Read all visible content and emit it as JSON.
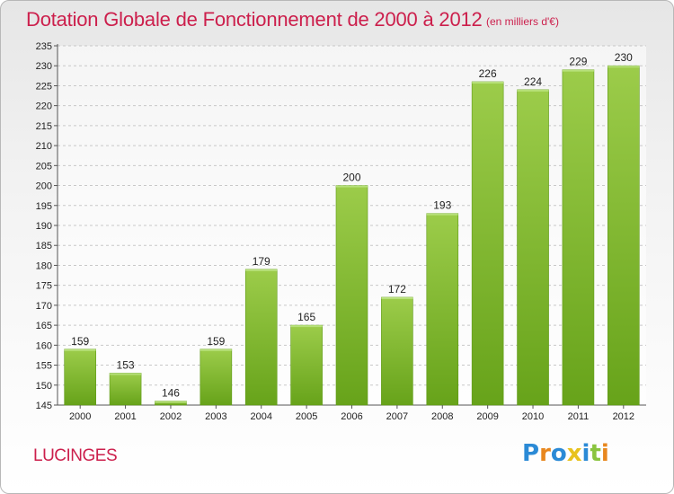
{
  "header": {
    "title": "Dotation Globale de Fonctionnement de 2000 à 2012",
    "subtitle": "(en milliers d'€)"
  },
  "footer": {
    "place": "LUCINGES",
    "brand": {
      "letters": [
        "P",
        "r",
        "o",
        "x",
        "i",
        "t",
        "i"
      ],
      "colors": [
        "#2b8ad6",
        "#e8871e",
        "#2b8ad6",
        "#e8c21e",
        "#2b8ad6",
        "#8ac43f",
        "#e8871e"
      ]
    }
  },
  "chart_data": {
    "type": "bar",
    "title": "Dotation Globale de Fonctionnement de 2000 à 2012",
    "subtitle": "(en milliers d'€)",
    "categories": [
      "2000",
      "2001",
      "2002",
      "2003",
      "2004",
      "2005",
      "2006",
      "2007",
      "2008",
      "2009",
      "2010",
      "2011",
      "2012"
    ],
    "values": [
      159,
      153,
      146,
      159,
      179,
      165,
      200,
      172,
      193,
      226,
      224,
      229,
      230
    ],
    "ylim": [
      145,
      235
    ],
    "ytick_step": 5,
    "grid": true,
    "bar_color_top": "#9ccc4a",
    "bar_color_bottom": "#67a31a"
  }
}
